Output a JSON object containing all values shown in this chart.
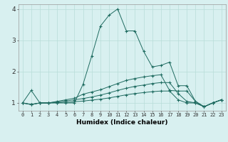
{
  "xlabel": "Humidex (Indice chaleur)",
  "bg_color": "#d8f0f0",
  "line_color": "#1e6b60",
  "grid_color": "#b8ddd8",
  "xlim": [
    -0.5,
    23.5
  ],
  "ylim": [
    0.75,
    4.15
  ],
  "yticks": [
    1,
    2,
    3,
    4
  ],
  "xticks": [
    0,
    1,
    2,
    3,
    4,
    5,
    6,
    7,
    8,
    9,
    10,
    11,
    12,
    13,
    14,
    15,
    16,
    17,
    18,
    19,
    20,
    21,
    22,
    23
  ],
  "series": [
    {
      "x": [
        0,
        1,
        2,
        3,
        4,
        5,
        6,
        7,
        8,
        9,
        10,
        11,
        12,
        13,
        14,
        15,
        16,
        17,
        18,
        19,
        20,
        21,
        22,
        23
      ],
      "y": [
        1.0,
        1.4,
        1.0,
        1.0,
        1.0,
        1.0,
        1.0,
        1.6,
        2.5,
        3.45,
        3.8,
        4.0,
        3.3,
        3.3,
        2.65,
        2.15,
        2.2,
        2.3,
        1.55,
        1.55,
        1.05,
        0.88,
        1.0,
        1.1
      ]
    },
    {
      "x": [
        0,
        1,
        2,
        3,
        4,
        5,
        6,
        7,
        8,
        9,
        10,
        11,
        12,
        13,
        14,
        15,
        16,
        17,
        18,
        19,
        20,
        21,
        22,
        23
      ],
      "y": [
        1.0,
        0.95,
        1.0,
        1.0,
        1.05,
        1.1,
        1.15,
        1.28,
        1.35,
        1.42,
        1.52,
        1.62,
        1.72,
        1.78,
        1.83,
        1.87,
        1.9,
        1.4,
        1.38,
        1.38,
        1.05,
        0.88,
        1.0,
        1.1
      ]
    },
    {
      "x": [
        0,
        1,
        2,
        3,
        4,
        5,
        6,
        7,
        8,
        9,
        10,
        11,
        12,
        13,
        14,
        15,
        16,
        17,
        18,
        19,
        20,
        21,
        22,
        23
      ],
      "y": [
        1.0,
        0.95,
        1.0,
        1.0,
        1.03,
        1.06,
        1.1,
        1.14,
        1.19,
        1.25,
        1.32,
        1.4,
        1.47,
        1.53,
        1.57,
        1.62,
        1.65,
        1.65,
        1.3,
        1.05,
        1.0,
        0.88,
        1.0,
        1.1
      ]
    },
    {
      "x": [
        0,
        1,
        2,
        3,
        4,
        5,
        6,
        7,
        8,
        9,
        10,
        11,
        12,
        13,
        14,
        15,
        16,
        17,
        18,
        19,
        20,
        21,
        22,
        23
      ],
      "y": [
        1.0,
        0.95,
        1.0,
        1.0,
        1.01,
        1.02,
        1.04,
        1.06,
        1.09,
        1.12,
        1.16,
        1.21,
        1.26,
        1.3,
        1.33,
        1.36,
        1.38,
        1.38,
        1.1,
        1.0,
        1.0,
        0.88,
        1.0,
        1.1
      ]
    }
  ]
}
